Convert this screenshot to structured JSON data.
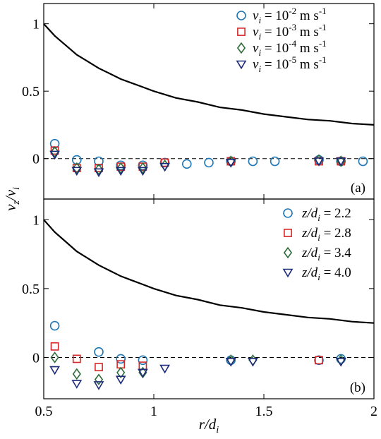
{
  "chart_data": [
    {
      "type": "scatter",
      "panel_label": "(a)",
      "xlim": [
        0.5,
        2
      ],
      "ylim": [
        -0.3,
        1.15
      ],
      "yticks": [
        0,
        0.5,
        1
      ],
      "ytick_labels": [
        "0",
        "0.5",
        "1"
      ],
      "legend_placement": "top-right",
      "curve": {
        "x": [
          0.5,
          0.55,
          0.6,
          0.65,
          0.7,
          0.75,
          0.8,
          0.85,
          0.9,
          0.95,
          1.0,
          1.1,
          1.2,
          1.3,
          1.4,
          1.5,
          1.6,
          1.7,
          1.8,
          1.9,
          2.0
        ],
        "y": [
          1.0,
          0.91,
          0.84,
          0.77,
          0.72,
          0.67,
          0.63,
          0.59,
          0.56,
          0.53,
          0.5,
          0.45,
          0.42,
          0.38,
          0.36,
          0.33,
          0.31,
          0.29,
          0.28,
          0.26,
          0.25
        ]
      },
      "series": [
        {
          "name": "v_i = 10^-2 m s^-1",
          "legend": {
            "var": "v",
            "sub": "i",
            "eq": " = 10",
            "exp": "-2",
            "unit": " m s",
            "unit_exp": "-1"
          },
          "marker": "circle",
          "color": "#1f77b4",
          "x": [
            0.55,
            0.65,
            0.75,
            0.85,
            0.95,
            1.05,
            1.15,
            1.25,
            1.35,
            1.45,
            1.55,
            1.75,
            1.85,
            1.95
          ],
          "y": [
            0.11,
            -0.01,
            -0.02,
            -0.05,
            -0.05,
            -0.03,
            -0.04,
            -0.03,
            -0.02,
            -0.02,
            -0.02,
            -0.01,
            -0.02,
            -0.02
          ]
        },
        {
          "name": "v_i = 10^-3 m s^-1",
          "legend": {
            "var": "v",
            "sub": "i",
            "eq": " = 10",
            "exp": "-3",
            "unit": " m s",
            "unit_exp": "-1"
          },
          "marker": "square",
          "color": "#d62728",
          "x": [
            0.55,
            0.65,
            0.75,
            0.85,
            0.95,
            1.05,
            1.35,
            1.75,
            1.85
          ],
          "y": [
            0.06,
            -0.07,
            -0.07,
            -0.06,
            -0.06,
            -0.03,
            -0.02,
            -0.02,
            -0.02
          ]
        },
        {
          "name": "v_i = 10^-4 m s^-1",
          "legend": {
            "var": "v",
            "sub": "i",
            "eq": " = 10",
            "exp": "-4",
            "unit": " m s",
            "unit_exp": "-1"
          },
          "marker": "diamond",
          "color": "#2e6b3a",
          "x": [
            0.55,
            0.65,
            0.75,
            0.85,
            0.95,
            1.05,
            1.35,
            1.75,
            1.85
          ],
          "y": [
            0.05,
            -0.07,
            -0.08,
            -0.07,
            -0.07,
            -0.05,
            -0.02,
            -0.01,
            -0.02
          ]
        },
        {
          "name": "v_i = 10^-5 m s^-1",
          "legend": {
            "var": "v",
            "sub": "i",
            "eq": " = 10",
            "exp": "-5",
            "unit": " m s",
            "unit_exp": "-1"
          },
          "marker": "triangle-down",
          "color": "#1c2a7a",
          "x": [
            0.55,
            0.65,
            0.75,
            0.85,
            0.95,
            1.05,
            1.35,
            1.75,
            1.85
          ],
          "y": [
            0.03,
            -0.09,
            -0.1,
            -0.09,
            -0.09,
            -0.06,
            -0.03,
            -0.02,
            -0.02
          ]
        }
      ]
    },
    {
      "type": "scatter",
      "panel_label": "(b)",
      "xlim": [
        0.5,
        2
      ],
      "ylim": [
        -0.3,
        1.15
      ],
      "yticks": [
        0,
        0.5,
        1
      ],
      "ytick_labels": [
        "0",
        "0.5",
        "1"
      ],
      "xticks": [
        0.5,
        1,
        1.5,
        2
      ],
      "xtick_labels": [
        "0.5",
        "1",
        "1.5",
        "2"
      ],
      "legend_placement": "top-right",
      "curve": {
        "x": [
          0.5,
          0.55,
          0.6,
          0.65,
          0.7,
          0.75,
          0.8,
          0.85,
          0.9,
          0.95,
          1.0,
          1.1,
          1.2,
          1.3,
          1.4,
          1.5,
          1.6,
          1.7,
          1.8,
          1.9,
          2.0
        ],
        "y": [
          1.0,
          0.91,
          0.84,
          0.77,
          0.72,
          0.67,
          0.63,
          0.59,
          0.56,
          0.53,
          0.5,
          0.45,
          0.42,
          0.38,
          0.36,
          0.33,
          0.31,
          0.29,
          0.28,
          0.26,
          0.25
        ]
      },
      "series": [
        {
          "name": "z/d_i = 2.2",
          "legend": {
            "var": "z/d",
            "sub": "i",
            "eq": "= 2.2",
            "exp": "",
            "unit": "",
            "unit_exp": ""
          },
          "marker": "circle",
          "color": "#1f77b4",
          "x": [
            0.55,
            0.75,
            0.85,
            0.95,
            1.35,
            1.75,
            1.85
          ],
          "y": [
            0.23,
            0.04,
            -0.01,
            -0.02,
            -0.02,
            -0.02,
            -0.01
          ]
        },
        {
          "name": "z/d_i = 2.8",
          "legend": {
            "var": "z/d",
            "sub": "i",
            "eq": "= 2.8",
            "exp": "",
            "unit": "",
            "unit_exp": ""
          },
          "marker": "square",
          "color": "#d62728",
          "x": [
            0.55,
            0.65,
            0.75,
            0.85,
            0.95,
            1.75
          ],
          "y": [
            0.08,
            -0.01,
            -0.07,
            -0.05,
            -0.06,
            -0.02
          ]
        },
        {
          "name": "z/d_i = 3.4",
          "legend": {
            "var": "z/d",
            "sub": "i",
            "eq": "= 3.4",
            "exp": "",
            "unit": "",
            "unit_exp": ""
          },
          "marker": "diamond",
          "color": "#2e6b3a",
          "x": [
            0.55,
            0.65,
            0.75,
            0.85,
            0.95,
            1.35,
            1.45,
            1.85
          ],
          "y": [
            0.0,
            -0.12,
            -0.16,
            -0.11,
            -0.11,
            -0.02,
            -0.02,
            -0.02
          ]
        },
        {
          "name": "z/d_i = 4.0",
          "legend": {
            "var": "z/d",
            "sub": "i",
            "eq": "= 4.0",
            "exp": "",
            "unit": "",
            "unit_exp": ""
          },
          "marker": "triangle-down",
          "color": "#1c2a7a",
          "x": [
            0.55,
            0.65,
            0.75,
            0.85,
            0.95,
            1.05,
            1.35,
            1.45,
            1.85
          ],
          "y": [
            -0.09,
            -0.19,
            -0.2,
            -0.16,
            -0.11,
            -0.08,
            -0.03,
            -0.03,
            -0.03
          ]
        }
      ]
    }
  ],
  "axis_titles": {
    "xlabel": {
      "var": "r/d",
      "sub": "i"
    },
    "ylabel": {
      "num": "v",
      "num_sub": "z",
      "sep": "/",
      "den": "v",
      "den_sub": "i"
    }
  }
}
